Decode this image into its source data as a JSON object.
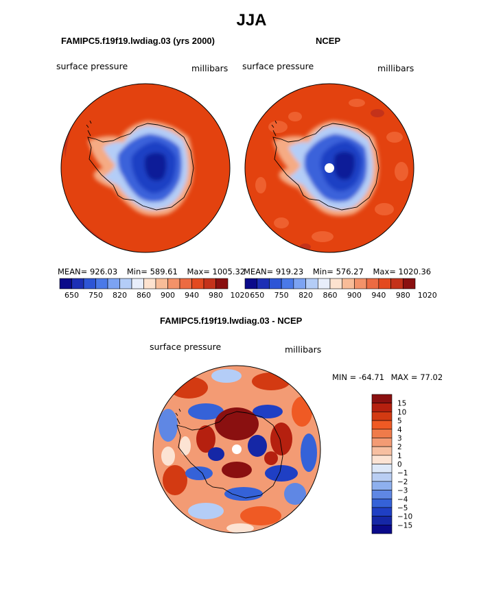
{
  "page": {
    "season": "JJA"
  },
  "panels": [
    {
      "title": "FAMIPC5.f19f19.lwdiag.03 (yrs 2000)",
      "variable": "surface pressure",
      "units": "millibars",
      "stats": {
        "mean": "926.03",
        "min": "589.61",
        "max": "1005.32"
      },
      "mean_label": "MEAN=",
      "min_label": "Min=",
      "max_label": "Max="
    },
    {
      "title": "NCEP",
      "variable": "surface pressure",
      "units": "millibars",
      "stats": {
        "mean": "919.23",
        "min": "576.27",
        "max": "1020.36"
      },
      "mean_label": "MEAN=",
      "min_label": "Min=",
      "max_label": "Max="
    },
    {
      "title": "FAMIPC5.f19f19.lwdiag.03 - NCEP",
      "variable": "surface pressure",
      "units": "millibars",
      "stats": {
        "min": "-64.71",
        "max": "77.02"
      },
      "min_label": "MIN =",
      "max_label": "MAX ="
    }
  ],
  "chart_data": [
    {
      "type": "heatmap",
      "projection": "south polar stereographic",
      "title": "FAMIPC5.f19f19.lwdiag.03 (yrs 2000)",
      "variable": "surface pressure",
      "units": "millibars",
      "mean": 926.03,
      "min": 589.61,
      "max": 1005.32,
      "colorbar": {
        "orientation": "horizontal",
        "tick_labels": [
          "650",
          "750",
          "820",
          "860",
          "900",
          "940",
          "980",
          "1020"
        ],
        "colors": [
          "#0a0a8a",
          "#1c2fb5",
          "#2d55d6",
          "#4a79e8",
          "#7ca3f2",
          "#b4cdf7",
          "#e8eefb",
          "#fde2cf",
          "#f8bc98",
          "#f39269",
          "#ec6b42",
          "#e34a20",
          "#c4321a",
          "#8a1010"
        ]
      }
    },
    {
      "type": "heatmap",
      "projection": "south polar stereographic",
      "title": "NCEP",
      "variable": "surface pressure",
      "units": "millibars",
      "mean": 919.23,
      "min": 576.27,
      "max": 1020.36,
      "colorbar": {
        "orientation": "horizontal",
        "tick_labels": [
          "650",
          "750",
          "820",
          "860",
          "900",
          "940",
          "980",
          "1020"
        ],
        "colors": [
          "#0a0a8a",
          "#1c2fb5",
          "#2d55d6",
          "#4a79e8",
          "#7ca3f2",
          "#b4cdf7",
          "#e8eefb",
          "#fde2cf",
          "#f8bc98",
          "#f39269",
          "#ec6b42",
          "#e34a20",
          "#c4321a",
          "#8a1010"
        ]
      }
    },
    {
      "type": "heatmap",
      "projection": "south polar stereographic",
      "title": "FAMIPC5.f19f19.lwdiag.03 - NCEP",
      "variable": "surface pressure",
      "units": "millibars",
      "min": -64.71,
      "max": 77.02,
      "colorbar": {
        "orientation": "vertical",
        "tick_labels": [
          "15",
          "10",
          "5",
          "4",
          "3",
          "2",
          "1",
          "0",
          "−1",
          "−2",
          "−3",
          "−4",
          "−5",
          "−10",
          "−15"
        ],
        "colors": [
          "#8a1010",
          "#b5200f",
          "#d33a12",
          "#ef5a24",
          "#ef7b4a",
          "#f39b74",
          "#f7bfa1",
          "#fce3d3",
          "#dde8f8",
          "#b9cef3",
          "#8eb0ee",
          "#5f87e4",
          "#3562d8",
          "#1f3fc4",
          "#1527a6",
          "#0a0a8a"
        ]
      }
    }
  ]
}
